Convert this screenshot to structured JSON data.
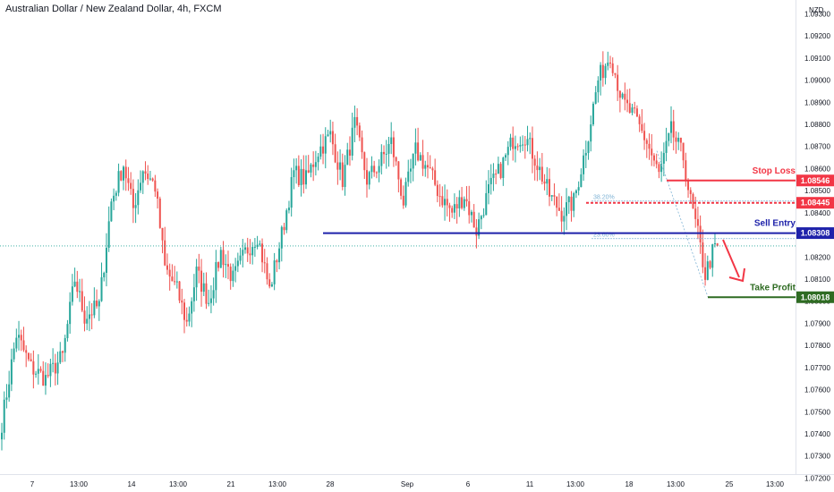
{
  "header": {
    "title": "Australian Dollar / New Zealand Dollar, 4h, FXCM"
  },
  "chart_data": {
    "type": "candlestick",
    "title": "Australian Dollar / New Zealand Dollar, 4h, FXCM",
    "currency_label": "NZD",
    "y_axis": {
      "range": [
        1.0722,
        1.0934
      ],
      "tick_labels": [
        "1.07200",
        "1.07300",
        "1.07400",
        "1.07500",
        "1.07600",
        "1.07700",
        "1.07800",
        "1.07900",
        "1.08000",
        "1.08100",
        "1.08200",
        "1.08300",
        "1.08400",
        "1.08500",
        "1.08600",
        "1.08700",
        "1.08800",
        "1.08900",
        "1.09000",
        "1.09100",
        "1.09200",
        "1.09300"
      ]
    },
    "x_axis": {
      "tick_labels": [
        "7",
        "13:00",
        "14",
        "13:00",
        "21",
        "13:00",
        "28",
        "Sep",
        "6",
        "11",
        "13:00",
        "18",
        "13:00",
        "25",
        "13:00"
      ]
    },
    "colors": {
      "up": "#26a69a",
      "down": "#ef5350",
      "stop": "#f23645",
      "entry": "#1e22aa",
      "target": "#2e6b22",
      "fib": "#7fb3d5"
    },
    "levels": [
      {
        "name": "Stop Loss",
        "price_label": "1.08546",
        "value": 1.08546
      },
      {
        "name": "",
        "price_label": "1.08445",
        "value": 1.08445
      },
      {
        "name": "Sell Entry",
        "price_label": "1.08308",
        "value": 1.08308
      },
      {
        "name": "Take Profit",
        "price_label": "1.08018",
        "value": 1.08018
      }
    ],
    "fib_labels": [
      "38.20%",
      "23.60%"
    ],
    "current_price": 1.0825,
    "anchors": [
      [
        0,
        1.0745
      ],
      [
        6,
        1.0785
      ],
      [
        12,
        1.077
      ],
      [
        18,
        1.0765
      ],
      [
        25,
        1.0775
      ],
      [
        30,
        1.081
      ],
      [
        34,
        1.0793
      ],
      [
        40,
        1.0798
      ],
      [
        45,
        1.0845
      ],
      [
        50,
        1.0862
      ],
      [
        54,
        1.0842
      ],
      [
        58,
        1.086
      ],
      [
        63,
        1.0852
      ],
      [
        67,
        1.0815
      ],
      [
        72,
        1.0805
      ],
      [
        76,
        1.079
      ],
      [
        80,
        1.0813
      ],
      [
        85,
        1.08
      ],
      [
        90,
        1.0822
      ],
      [
        95,
        1.081
      ],
      [
        100,
        1.0822
      ],
      [
        105,
        1.083
      ],
      [
        110,
        1.0805
      ],
      [
        115,
        1.083
      ],
      [
        120,
        1.0858
      ],
      [
        125,
        1.0855
      ],
      [
        130,
        1.0868
      ],
      [
        135,
        1.0875
      ],
      [
        140,
        1.0855
      ],
      [
        145,
        1.088
      ],
      [
        150,
        1.0855
      ],
      [
        155,
        1.0862
      ],
      [
        160,
        1.0872
      ],
      [
        165,
        1.0845
      ],
      [
        170,
        1.0868
      ],
      [
        175,
        1.086
      ],
      [
        180,
        1.0848
      ],
      [
        185,
        1.084
      ],
      [
        190,
        1.0848
      ],
      [
        195,
        1.0832
      ],
      [
        200,
        1.085
      ],
      [
        205,
        1.086
      ],
      [
        210,
        1.0873
      ],
      [
        215,
        1.0875
      ],
      [
        220,
        1.0862
      ],
      [
        225,
        1.0848
      ],
      [
        230,
        1.084
      ],
      [
        235,
        1.0845
      ],
      [
        240,
        1.087
      ],
      [
        245,
        1.09
      ],
      [
        250,
        1.0912
      ],
      [
        255,
        1.089
      ],
      [
        260,
        1.0883
      ],
      [
        265,
        1.0872
      ],
      [
        270,
        1.0857
      ],
      [
        275,
        1.0877
      ],
      [
        280,
        1.0865
      ],
      [
        283,
        1.0845
      ],
      [
        286,
        1.083
      ],
      [
        289,
        1.0812
      ],
      [
        292,
        1.0822
      ],
      [
        294,
        1.0825
      ]
    ]
  }
}
